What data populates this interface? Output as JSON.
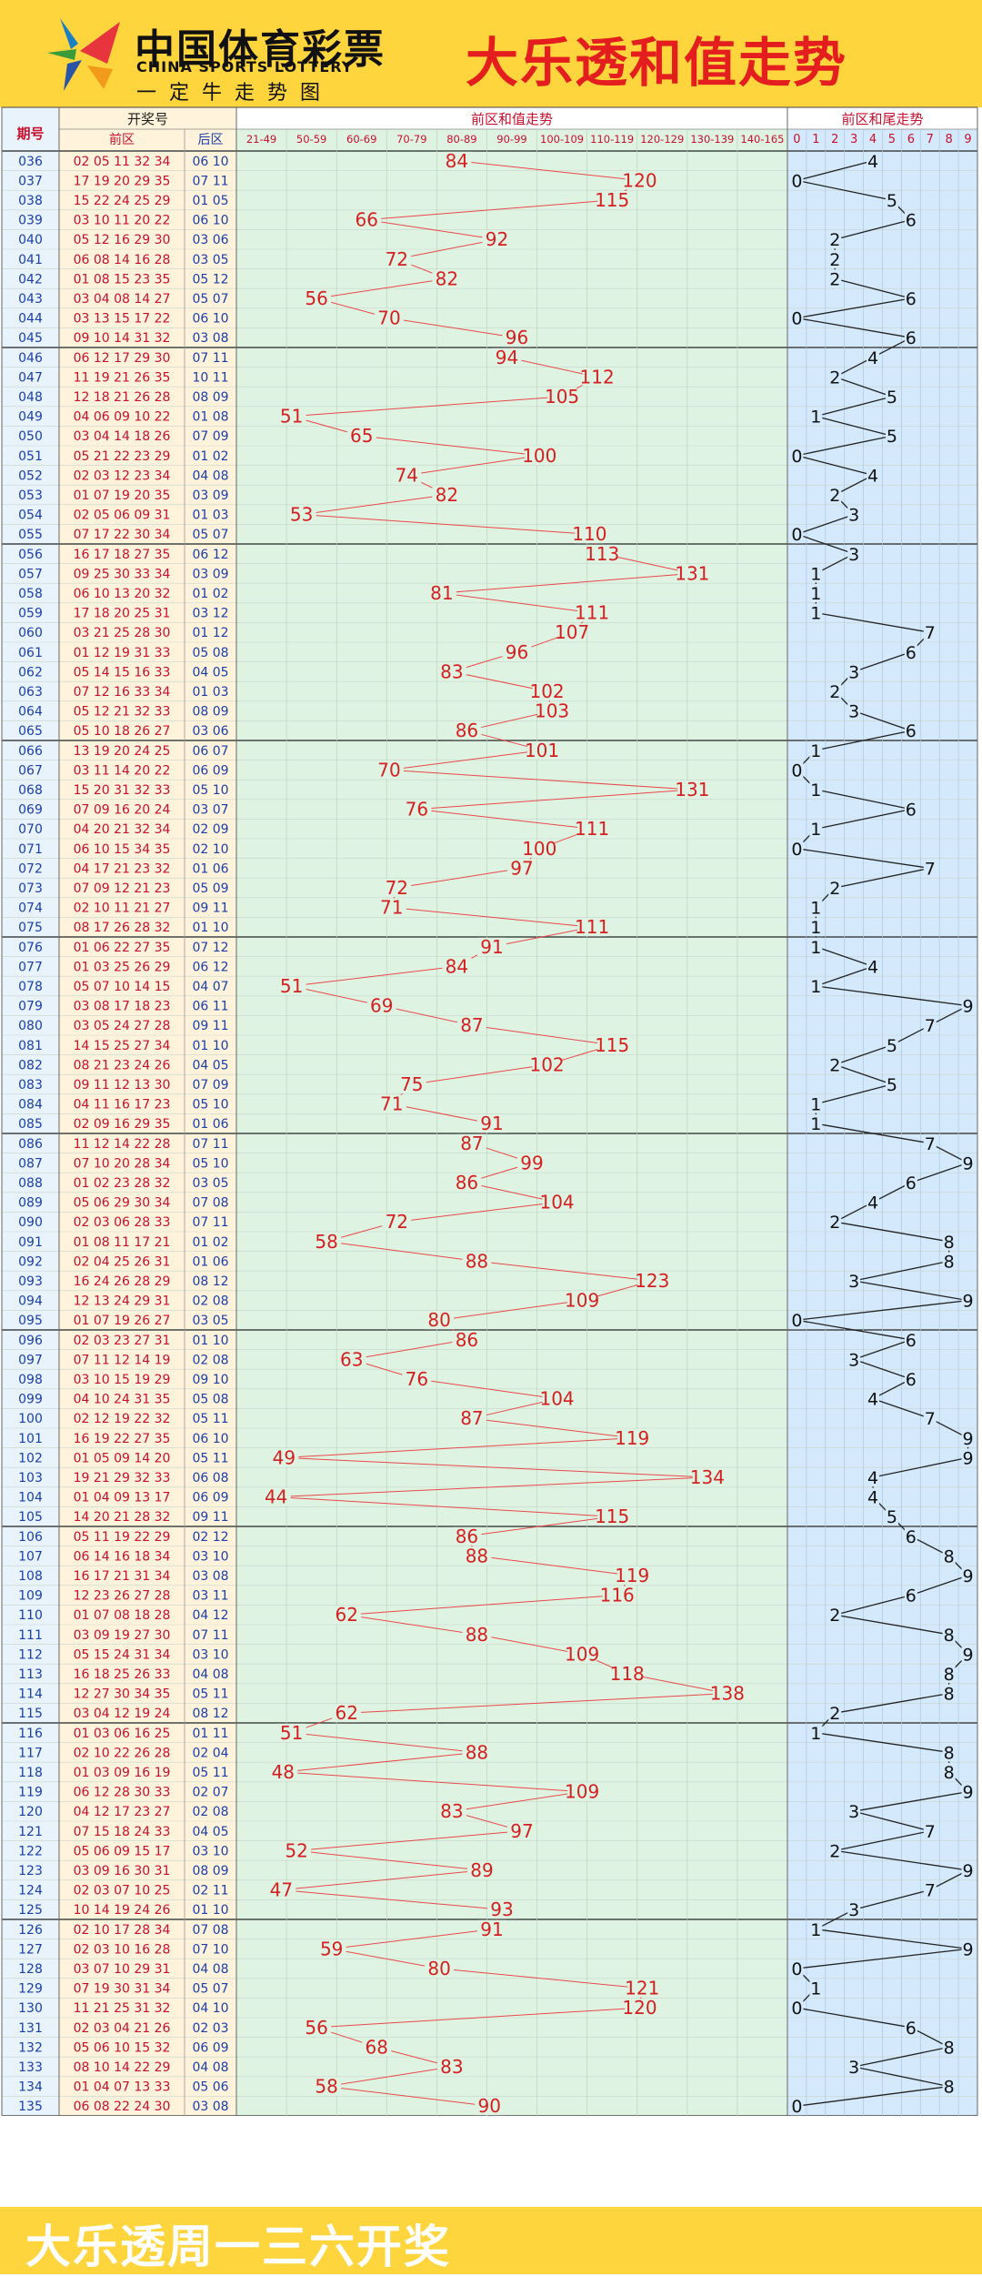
{
  "header": {
    "logo_cn": "中国体育彩票",
    "logo_en": "CHINA SPORTS LOTTERY",
    "logo_sub": "一定牛走势图",
    "title": "大乐透和值走势"
  },
  "footer": {
    "text": "大乐透周一三六开奖"
  },
  "table_headers": {
    "period": "期号",
    "draw_numbers": "开奖号",
    "front": "前区",
    "back": "后区",
    "sum_trend": "前区和值走势",
    "tail_trend": "前区和尾走势"
  },
  "colors": {
    "banner": "#ffd53d",
    "title": "#e41e1e",
    "period_bg": "#e8f3fb",
    "front_bg": "#fff3dc",
    "sum_bg": "#dff3e3",
    "tail_bg": "#d4e9fb",
    "sum_line": "#e94848",
    "tail_line": "#222222"
  },
  "chart_data": {
    "type": "line",
    "sum_ranges": [
      "21-49",
      "50-59",
      "60-69",
      "70-79",
      "80-89",
      "90-99",
      "100-109",
      "110-119",
      "120-129",
      "130-139",
      "140-165"
    ],
    "tail_ticks": [
      "0",
      "1",
      "2",
      "3",
      "4",
      "5",
      "6",
      "7",
      "8",
      "9"
    ],
    "rows": [
      {
        "period": "036",
        "front": "02 05 11 32 34",
        "back": "06 10",
        "sum": 84,
        "tail": 4
      },
      {
        "period": "037",
        "front": "17 19 20 29 35",
        "back": "07 11",
        "sum": 120,
        "tail": 0
      },
      {
        "period": "038",
        "front": "15 22 24 25 29",
        "back": "01 05",
        "sum": 115,
        "tail": 5
      },
      {
        "period": "039",
        "front": "03 10 11 20 22",
        "back": "06 10",
        "sum": 66,
        "tail": 6
      },
      {
        "period": "040",
        "front": "05 12 16 29 30",
        "back": "03 06",
        "sum": 92,
        "tail": 2
      },
      {
        "period": "041",
        "front": "06 08 14 16 28",
        "back": "03 05",
        "sum": 72,
        "tail": 2
      },
      {
        "period": "042",
        "front": "01 08 15 23 35",
        "back": "05 12",
        "sum": 82,
        "tail": 2
      },
      {
        "period": "043",
        "front": "03 04 08 14 27",
        "back": "05 07",
        "sum": 56,
        "tail": 6
      },
      {
        "period": "044",
        "front": "03 13 15 17 22",
        "back": "06 10",
        "sum": 70,
        "tail": 0
      },
      {
        "period": "045",
        "front": "09 10 14 31 32",
        "back": "03 08",
        "sum": 96,
        "tail": 6
      },
      {
        "period": "046",
        "front": "06 12 17 29 30",
        "back": "07 11",
        "sum": 94,
        "tail": 4
      },
      {
        "period": "047",
        "front": "11 19 21 26 35",
        "back": "10 11",
        "sum": 112,
        "tail": 2
      },
      {
        "period": "048",
        "front": "12 18 21 26 28",
        "back": "08 09",
        "sum": 105,
        "tail": 5
      },
      {
        "period": "049",
        "front": "04 06 09 10 22",
        "back": "01 08",
        "sum": 51,
        "tail": 1
      },
      {
        "period": "050",
        "front": "03 04 14 18 26",
        "back": "07 09",
        "sum": 65,
        "tail": 5
      },
      {
        "period": "051",
        "front": "05 21 22 23 29",
        "back": "01 02",
        "sum": 100,
        "tail": 0
      },
      {
        "period": "052",
        "front": "02 03 12 23 34",
        "back": "04 08",
        "sum": 74,
        "tail": 4
      },
      {
        "period": "053",
        "front": "01 07 19 20 35",
        "back": "03 09",
        "sum": 82,
        "tail": 2
      },
      {
        "period": "054",
        "front": "02 05 06 09 31",
        "back": "01 03",
        "sum": 53,
        "tail": 3
      },
      {
        "period": "055",
        "front": "07 17 22 30 34",
        "back": "05 07",
        "sum": 110,
        "tail": 0
      },
      {
        "period": "056",
        "front": "16 17 18 27 35",
        "back": "06 12",
        "sum": 113,
        "tail": 3
      },
      {
        "period": "057",
        "front": "09 25 30 33 34",
        "back": "03 09",
        "sum": 131,
        "tail": 1
      },
      {
        "period": "058",
        "front": "06 10 13 20 32",
        "back": "01 02",
        "sum": 81,
        "tail": 1
      },
      {
        "period": "059",
        "front": "17 18 20 25 31",
        "back": "03 12",
        "sum": 111,
        "tail": 1
      },
      {
        "period": "060",
        "front": "03 21 25 28 30",
        "back": "01 12",
        "sum": 107,
        "tail": 7
      },
      {
        "period": "061",
        "front": "01 12 19 31 33",
        "back": "05 08",
        "sum": 96,
        "tail": 6
      },
      {
        "period": "062",
        "front": "05 14 15 16 33",
        "back": "04 05",
        "sum": 83,
        "tail": 3
      },
      {
        "period": "063",
        "front": "07 12 16 33 34",
        "back": "01 03",
        "sum": 102,
        "tail": 2
      },
      {
        "period": "064",
        "front": "05 12 21 32 33",
        "back": "08 09",
        "sum": 103,
        "tail": 3
      },
      {
        "period": "065",
        "front": "05 10 18 26 27",
        "back": "03 06",
        "sum": 86,
        "tail": 6
      },
      {
        "period": "066",
        "front": "13 19 20 24 25",
        "back": "06 07",
        "sum": 101,
        "tail": 1
      },
      {
        "period": "067",
        "front": "03 11 14 20 22",
        "back": "06 09",
        "sum": 70,
        "tail": 0
      },
      {
        "period": "068",
        "front": "15 20 31 32 33",
        "back": "05 10",
        "sum": 131,
        "tail": 1
      },
      {
        "period": "069",
        "front": "07 09 16 20 24",
        "back": "03 07",
        "sum": 76,
        "tail": 6
      },
      {
        "period": "070",
        "front": "04 20 21 32 34",
        "back": "02 09",
        "sum": 111,
        "tail": 1
      },
      {
        "period": "071",
        "front": "06 10 15 34 35",
        "back": "02 10",
        "sum": 100,
        "tail": 0
      },
      {
        "period": "072",
        "front": "04 17 21 23 32",
        "back": "01 06",
        "sum": 97,
        "tail": 7
      },
      {
        "period": "073",
        "front": "07 09 12 21 23",
        "back": "05 09",
        "sum": 72,
        "tail": 2
      },
      {
        "period": "074",
        "front": "02 10 11 21 27",
        "back": "09 11",
        "sum": 71,
        "tail": 1
      },
      {
        "period": "075",
        "front": "08 17 26 28 32",
        "back": "01 10",
        "sum": 111,
        "tail": 1
      },
      {
        "period": "076",
        "front": "01 06 22 27 35",
        "back": "07 12",
        "sum": 91,
        "tail": 1
      },
      {
        "period": "077",
        "front": "01 03 25 26 29",
        "back": "06 12",
        "sum": 84,
        "tail": 4
      },
      {
        "period": "078",
        "front": "05 07 10 14 15",
        "back": "04 07",
        "sum": 51,
        "tail": 1
      },
      {
        "period": "079",
        "front": "03 08 17 18 23",
        "back": "06 11",
        "sum": 69,
        "tail": 9
      },
      {
        "period": "080",
        "front": "03 05 24 27 28",
        "back": "09 11",
        "sum": 87,
        "tail": 7
      },
      {
        "period": "081",
        "front": "14 15 25 27 34",
        "back": "01 10",
        "sum": 115,
        "tail": 5
      },
      {
        "period": "082",
        "front": "08 21 23 24 26",
        "back": "04 05",
        "sum": 102,
        "tail": 2
      },
      {
        "period": "083",
        "front": "09 11 12 13 30",
        "back": "07 09",
        "sum": 75,
        "tail": 5
      },
      {
        "period": "084",
        "front": "04 11 16 17 23",
        "back": "05 10",
        "sum": 71,
        "tail": 1
      },
      {
        "period": "085",
        "front": "02 09 16 29 35",
        "back": "01 06",
        "sum": 91,
        "tail": 1
      },
      {
        "period": "086",
        "front": "11 12 14 22 28",
        "back": "07 11",
        "sum": 87,
        "tail": 7
      },
      {
        "period": "087",
        "front": "07 10 20 28 34",
        "back": "05 10",
        "sum": 99,
        "tail": 9
      },
      {
        "period": "088",
        "front": "01 02 23 28 32",
        "back": "03 05",
        "sum": 86,
        "tail": 6
      },
      {
        "period": "089",
        "front": "05 06 29 30 34",
        "back": "07 08",
        "sum": 104,
        "tail": 4
      },
      {
        "period": "090",
        "front": "02 03 06 28 33",
        "back": "07 11",
        "sum": 72,
        "tail": 2
      },
      {
        "period": "091",
        "front": "01 08 11 17 21",
        "back": "01 02",
        "sum": 58,
        "tail": 8
      },
      {
        "period": "092",
        "front": "02 04 25 26 31",
        "back": "01 06",
        "sum": 88,
        "tail": 8
      },
      {
        "period": "093",
        "front": "16 24 26 28 29",
        "back": "08 12",
        "sum": 123,
        "tail": 3
      },
      {
        "period": "094",
        "front": "12 13 24 29 31",
        "back": "02 08",
        "sum": 109,
        "tail": 9
      },
      {
        "period": "095",
        "front": "01 07 19 26 27",
        "back": "03 05",
        "sum": 80,
        "tail": 0
      },
      {
        "period": "096",
        "front": "02 03 23 27 31",
        "back": "01 10",
        "sum": 86,
        "tail": 6
      },
      {
        "period": "097",
        "front": "07 11 12 14 19",
        "back": "02 08",
        "sum": 63,
        "tail": 3
      },
      {
        "period": "098",
        "front": "03 10 15 19 29",
        "back": "09 10",
        "sum": 76,
        "tail": 6
      },
      {
        "period": "099",
        "front": "04 10 24 31 35",
        "back": "05 08",
        "sum": 104,
        "tail": 4
      },
      {
        "period": "100",
        "front": "02 12 19 22 32",
        "back": "05 11",
        "sum": 87,
        "tail": 7
      },
      {
        "period": "101",
        "front": "16 19 22 27 35",
        "back": "06 10",
        "sum": 119,
        "tail": 9
      },
      {
        "period": "102",
        "front": "01 05 09 14 20",
        "back": "05 11",
        "sum": 49,
        "tail": 9
      },
      {
        "period": "103",
        "front": "19 21 29 32 33",
        "back": "06 08",
        "sum": 134,
        "tail": 4
      },
      {
        "period": "104",
        "front": "01 04 09 13 17",
        "back": "06 09",
        "sum": 44,
        "tail": 4
      },
      {
        "period": "105",
        "front": "14 20 21 28 32",
        "back": "09 11",
        "sum": 115,
        "tail": 5
      },
      {
        "period": "106",
        "front": "05 11 19 22 29",
        "back": "02 12",
        "sum": 86,
        "tail": 6
      },
      {
        "period": "107",
        "front": "06 14 16 18 34",
        "back": "03 10",
        "sum": 88,
        "tail": 8
      },
      {
        "period": "108",
        "front": "16 17 21 31 34",
        "back": "03 08",
        "sum": 119,
        "tail": 9
      },
      {
        "period": "109",
        "front": "12 23 26 27 28",
        "back": "03 11",
        "sum": 116,
        "tail": 6
      },
      {
        "period": "110",
        "front": "01 07 08 18 28",
        "back": "04 12",
        "sum": 62,
        "tail": 2
      },
      {
        "period": "111",
        "front": "03 09 19 27 30",
        "back": "07 11",
        "sum": 88,
        "tail": 8
      },
      {
        "period": "112",
        "front": "05 15 24 31 34",
        "back": "03 10",
        "sum": 109,
        "tail": 9
      },
      {
        "period": "113",
        "front": "16 18 25 26 33",
        "back": "04 08",
        "sum": 118,
        "tail": 8
      },
      {
        "period": "114",
        "front": "12 27 30 34 35",
        "back": "05 11",
        "sum": 138,
        "tail": 8
      },
      {
        "period": "115",
        "front": "03 04 12 19 24",
        "back": "08 12",
        "sum": 62,
        "tail": 2
      },
      {
        "period": "116",
        "front": "01 03 06 16 25",
        "back": "01 11",
        "sum": 51,
        "tail": 1
      },
      {
        "period": "117",
        "front": "02 10 22 26 28",
        "back": "02 04",
        "sum": 88,
        "tail": 8
      },
      {
        "period": "118",
        "front": "01 03 09 16 19",
        "back": "05 11",
        "sum": 48,
        "tail": 8
      },
      {
        "period": "119",
        "front": "06 12 28 30 33",
        "back": "02 07",
        "sum": 109,
        "tail": 9
      },
      {
        "period": "120",
        "front": "04 12 17 23 27",
        "back": "02 08",
        "sum": 83,
        "tail": 3
      },
      {
        "period": "121",
        "front": "07 15 18 24 33",
        "back": "04 05",
        "sum": 97,
        "tail": 7
      },
      {
        "period": "122",
        "front": "05 06 09 15 17",
        "back": "03 10",
        "sum": 52,
        "tail": 2
      },
      {
        "period": "123",
        "front": "03 09 16 30 31",
        "back": "08 09",
        "sum": 89,
        "tail": 9
      },
      {
        "period": "124",
        "front": "02 03 07 10 25",
        "back": "02 11",
        "sum": 47,
        "tail": 7
      },
      {
        "period": "125",
        "front": "10 14 19 24 26",
        "back": "01 10",
        "sum": 93,
        "tail": 3
      },
      {
        "period": "126",
        "front": "02 10 17 28 34",
        "back": "07 08",
        "sum": 91,
        "tail": 1
      },
      {
        "period": "127",
        "front": "02 03 10 16 28",
        "back": "07 10",
        "sum": 59,
        "tail": 9
      },
      {
        "period": "128",
        "front": "03 07 10 29 31",
        "back": "04 08",
        "sum": 80,
        "tail": 0
      },
      {
        "period": "129",
        "front": "07 19 30 31 34",
        "back": "05 07",
        "sum": 121,
        "tail": 1
      },
      {
        "period": "130",
        "front": "11 21 25 31 32",
        "back": "04 10",
        "sum": 120,
        "tail": 0
      },
      {
        "period": "131",
        "front": "02 03 04 21 26",
        "back": "02 03",
        "sum": 56,
        "tail": 6
      },
      {
        "period": "132",
        "front": "05 06 10 15 32",
        "back": "06 09",
        "sum": 68,
        "tail": 8
      },
      {
        "period": "133",
        "front": "08 10 14 22 29",
        "back": "04 08",
        "sum": 83,
        "tail": 3
      },
      {
        "period": "134",
        "front": "01 04 07 13 33",
        "back": "05 06",
        "sum": 58,
        "tail": 8
      },
      {
        "period": "135",
        "front": "06 08 22 24 30",
        "back": "03 08",
        "sum": 90,
        "tail": 0
      }
    ]
  }
}
